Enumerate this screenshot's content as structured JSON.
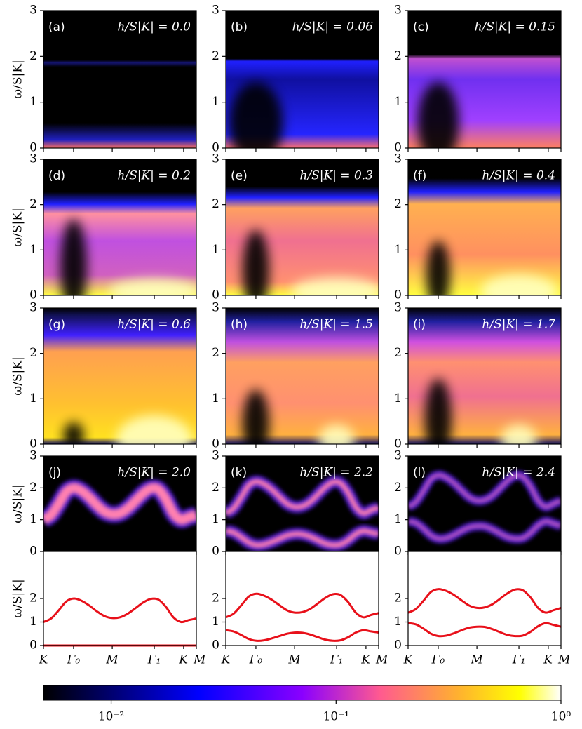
{
  "chart_data": [
    {
      "type": "heatmap",
      "ylabel": "ω/S|K|",
      "ylim": [
        0,
        3
      ],
      "yticks": [
        0,
        1,
        2,
        3
      ],
      "xlim": [
        0,
        1
      ],
      "xticks": [
        0,
        0.197,
        0.45,
        0.725,
        0.917,
        1
      ],
      "panels": [
        {
          "label": "(a)",
          "title": "h/S|K| = 0.0"
        },
        {
          "label": "(b)",
          "title": "h/S|K| = 0.06"
        },
        {
          "label": "(c)",
          "title": "h/S|K| = 0.15"
        },
        {
          "label": "(d)",
          "title": "h/S|K| = 0.2"
        },
        {
          "label": "(e)",
          "title": "h/S|K| = 0.3"
        },
        {
          "label": "(f)",
          "title": "h/S|K| = 0.4"
        },
        {
          "label": "(g)",
          "title": "h/S|K| = 0.6"
        },
        {
          "label": "(h)",
          "title": "h/S|K| = 1.5"
        },
        {
          "label": "(i)",
          "title": "h/S|K| = 1.7"
        },
        {
          "label": "(j)",
          "title": "h/S|K| = 2.0"
        },
        {
          "label": "(k)",
          "title": "h/S|K| = 2.2"
        },
        {
          "label": "(l)",
          "title": "h/S|K| = 2.4"
        }
      ]
    },
    {
      "type": "line",
      "ylabel": "ω/S|K|",
      "color": "#e8101a",
      "xlim": [
        0,
        1
      ],
      "xticks": [
        {
          "value": 0,
          "label": "K"
        },
        {
          "value": 0.197,
          "label": "Γ₀"
        },
        {
          "value": 0.45,
          "label": "M"
        },
        {
          "value": 0.725,
          "label": "Γ₁"
        },
        {
          "value": 0.917,
          "label": "K"
        },
        {
          "value": 1,
          "label": "M"
        }
      ],
      "ylim": [
        0,
        4
      ],
      "yticks": [
        0,
        1,
        2
      ],
      "x": [
        0,
        0.05,
        0.1,
        0.15,
        0.2,
        0.25,
        0.3,
        0.35,
        0.4,
        0.45,
        0.5,
        0.55,
        0.6,
        0.65,
        0.7,
        0.75,
        0.8,
        0.85,
        0.9,
        0.95,
        1
      ],
      "panels": [
        {
          "series": [
            {
              "values": [
                1.0,
                1.15,
                1.5,
                1.88,
                2.0,
                1.9,
                1.7,
                1.45,
                1.25,
                1.17,
                1.2,
                1.35,
                1.58,
                1.82,
                1.98,
                1.96,
                1.65,
                1.2,
                1.0,
                1.08,
                1.15
              ]
            },
            {
              "values": [
                0,
                0,
                0,
                0,
                0,
                0,
                0,
                0,
                0,
                0,
                0,
                0,
                0,
                0,
                0,
                0,
                0,
                0,
                0,
                0,
                0
              ]
            }
          ]
        },
        {
          "series": [
            {
              "values": [
                1.2,
                1.35,
                1.7,
                2.08,
                2.2,
                2.12,
                1.95,
                1.72,
                1.5,
                1.4,
                1.42,
                1.55,
                1.78,
                2.02,
                2.18,
                2.15,
                1.85,
                1.4,
                1.2,
                1.3,
                1.38
              ]
            },
            {
              "values": [
                0.65,
                0.6,
                0.45,
                0.28,
                0.2,
                0.22,
                0.3,
                0.4,
                0.5,
                0.55,
                0.54,
                0.47,
                0.36,
                0.25,
                0.2,
                0.22,
                0.35,
                0.55,
                0.65,
                0.6,
                0.55
              ]
            }
          ]
        },
        {
          "series": [
            {
              "values": [
                1.4,
                1.55,
                1.9,
                2.28,
                2.4,
                2.32,
                2.15,
                1.92,
                1.7,
                1.6,
                1.62,
                1.75,
                1.98,
                2.22,
                2.38,
                2.35,
                2.05,
                1.6,
                1.4,
                1.5,
                1.6
              ]
            },
            {
              "values": [
                0.95,
                0.9,
                0.72,
                0.5,
                0.4,
                0.42,
                0.52,
                0.65,
                0.76,
                0.8,
                0.79,
                0.7,
                0.57,
                0.45,
                0.4,
                0.42,
                0.58,
                0.82,
                0.95,
                0.88,
                0.8
              ]
            }
          ]
        }
      ]
    },
    {
      "type": "colorbar",
      "log_scale": true,
      "lim": [
        0.005,
        1
      ],
      "ticks": [
        {
          "value": 0.01,
          "label": "10⁻²"
        },
        {
          "value": 0.1,
          "label": "10⁻¹"
        },
        {
          "value": 1,
          "label": "10⁰"
        }
      ]
    }
  ]
}
